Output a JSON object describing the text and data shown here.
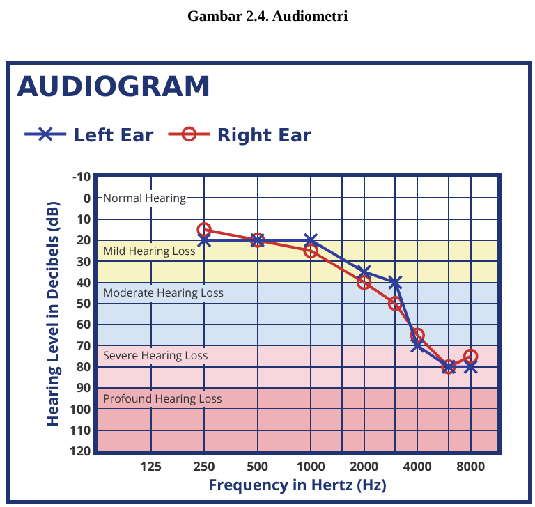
{
  "chart_data": {
    "type": "line",
    "title": "Gambar 2.4. Audiometri",
    "subtitle": "AUDIOGRAM",
    "xlabel": "Frequency in Hertz (Hz)",
    "ylabel": "Hearing Level in Decibels (dB)",
    "log": "x",
    "xlim": [
      62.5,
      11314
    ],
    "xticks": [
      125,
      250,
      500,
      1000,
      {
        "value": 1500,
        "label": null
      },
      2000,
      {
        "value": 3000,
        "label": null
      },
      4000,
      {
        "value": 6000,
        "label": null
      },
      8000
    ],
    "ylim": [
      120,
      -10
    ],
    "yticks": [
      -10,
      0,
      10,
      20,
      30,
      40,
      50,
      60,
      70,
      80,
      90,
      100,
      110,
      120
    ],
    "grid": true,
    "legend": "top",
    "line_style": "solid",
    "series": [
      {
        "name": "Left Ear",
        "color": "#2e3f9c",
        "marker": "cross",
        "x": [
          250,
          500,
          1000,
          2000,
          3000,
          4000,
          6000,
          8000
        ],
        "values": [
          20,
          20,
          20,
          35,
          40,
          70,
          80,
          80
        ]
      },
      {
        "name": "Right Ear",
        "color": "#c8322f",
        "marker": "circle",
        "x": [
          250,
          500,
          1000,
          2000,
          3000,
          4000,
          6000,
          8000
        ],
        "values": [
          15,
          20,
          25,
          40,
          50,
          65,
          80,
          75
        ]
      }
    ],
    "bands": [
      {
        "axis": "y",
        "from": 20,
        "to": 40,
        "label": "Mild Hearing Loss",
        "color": "#f8f3c2"
      },
      {
        "axis": "y",
        "from": 40,
        "to": 70,
        "label": "Moderate Hearing Loss",
        "color": "#d6e3f3"
      },
      {
        "axis": "y",
        "from": 70,
        "to": 90,
        "label": "Severe Hearing Loss",
        "color": "#f8d7dc"
      },
      {
        "axis": "y",
        "from": 90,
        "to": 120,
        "label": "Profound Hearing Loss",
        "color": "#eeb1b8"
      }
    ],
    "annotations": [
      "Normal Hearing"
    ]
  }
}
